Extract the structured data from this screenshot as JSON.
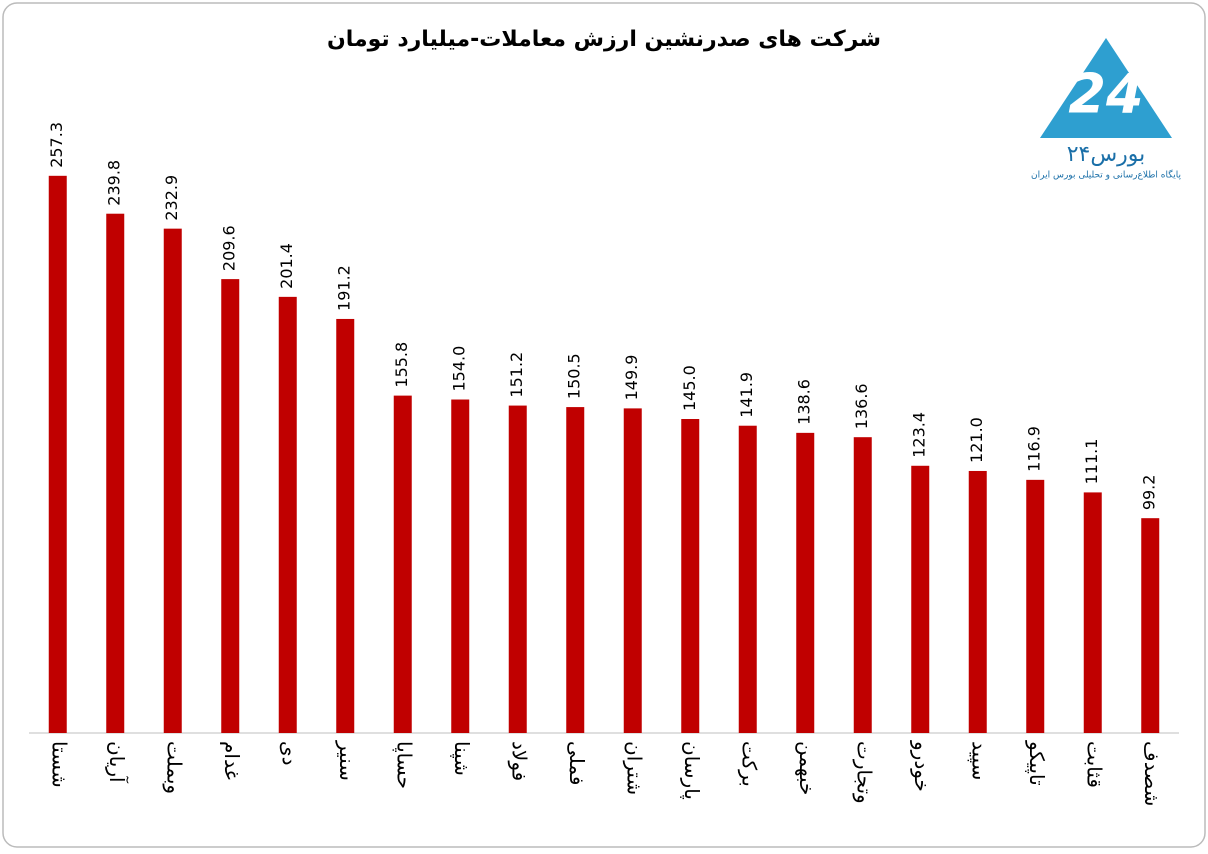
{
  "chart_data": {
    "type": "bar",
    "title": "شرکت های صدرنشین ارزش معاملات-میلیارد تومان",
    "categories": [
      "شستا",
      "آریان",
      "وبملت",
      "غدام",
      "دی",
      "سنیر",
      "حساپا",
      "شپنا",
      "فولاد",
      "فملی",
      "شتران",
      "پارسان",
      "برکت",
      "خبهمن",
      "وتجارت",
      "خودرو",
      "سپید",
      "تاپیکو",
      "قثابت",
      "شصدف"
    ],
    "values": [
      257.3,
      239.8,
      232.9,
      209.6,
      201.4,
      191.2,
      155.8,
      154.0,
      151.2,
      150.5,
      149.9,
      145.0,
      141.9,
      138.6,
      136.6,
      123.4,
      121.0,
      116.9,
      111.1,
      99.2
    ],
    "value_labels": [
      "257.3",
      "239.8",
      "232.9",
      "209.6",
      "201.4",
      "191.2",
      "155.8",
      "154.0",
      "151.2",
      "150.5",
      "149.9",
      "145.0",
      "141.9",
      "138.6",
      "136.6",
      "123.4",
      "121.0",
      "116.9",
      "111.1",
      "99.2"
    ],
    "color": "#c00000",
    "ylim": [
      0,
      290
    ]
  },
  "logo": {
    "name": "بورس۲۴",
    "tagline": "پایگاه اطلاع‌رسانی و تحلیلی بورس ایران"
  }
}
